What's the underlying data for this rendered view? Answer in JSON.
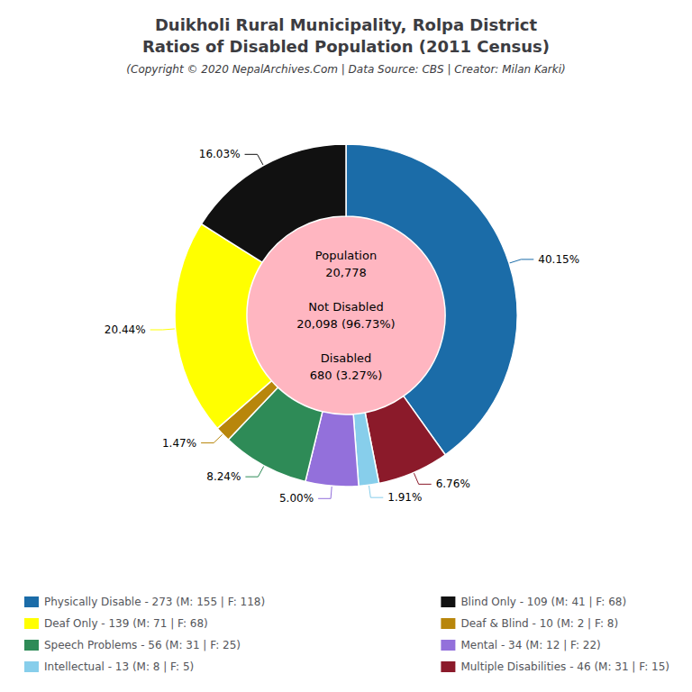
{
  "chart_data": {
    "type": "pie",
    "title": "Duikholi Rural Municipality, Rolpa District\nRatios of Disabled Population (2011 Census)",
    "subtitle": "(Copyright © 2020 NepalArchives.Com | Data Source: CBS | Creator: Milan Karki)",
    "categories": [
      "Physically Disable - 273 (M: 155 | F: 118)",
      "Multiple Disabilities - 46 (M: 31 | F: 15)",
      "Intellectual - 13 (M: 8 | F: 5)",
      "Mental - 34 (M: 12 | F: 22)",
      "Speech Problems - 56 (M: 31 | F: 25)",
      "Deaf & Blind - 10 (M: 2 | F: 8)",
      "Deaf Only - 139 (M: 71 | F: 68)",
      "Blind Only - 109 (M: 41 | F: 68)"
    ],
    "values": [
      40.15,
      6.76,
      1.91,
      5.0,
      8.24,
      1.47,
      20.44,
      16.03
    ],
    "value_labels": [
      "40.15%",
      "6.76%",
      "1.91%",
      "5.00%",
      "8.24%",
      "1.47%",
      "20.44%",
      "16.03%"
    ],
    "data_labels": true,
    "colors": [
      "#1B6CA8",
      "#8B1A2A",
      "#87CEEB",
      "#9370DB",
      "#2E8B57",
      "#B8860B",
      "#FFFF00",
      "#111111"
    ],
    "center_color": "#FFB6C1",
    "annotations": [
      "Population\n20,778\n\nNot Disabled\n20,098 (96.73%)\n\nDisabled\n680 (3.27%)"
    ],
    "legend": "bottom",
    "legend_entries": [
      "Physically Disable - 273 (M: 155 | F: 118)",
      "Deaf Only - 139 (M: 71 | F: 68)",
      "Speech Problems - 56 (M: 31 | F: 25)",
      "Intellectual - 13 (M: 8 | F: 5)",
      "Blind Only - 109 (M: 41 | F: 68)",
      "Deaf & Blind - 10 (M: 2 | F: 8)",
      "Mental - 34 (M: 12 | F: 22)",
      "Multiple Disabilities - 46 (M: 31 | F: 15)"
    ]
  }
}
